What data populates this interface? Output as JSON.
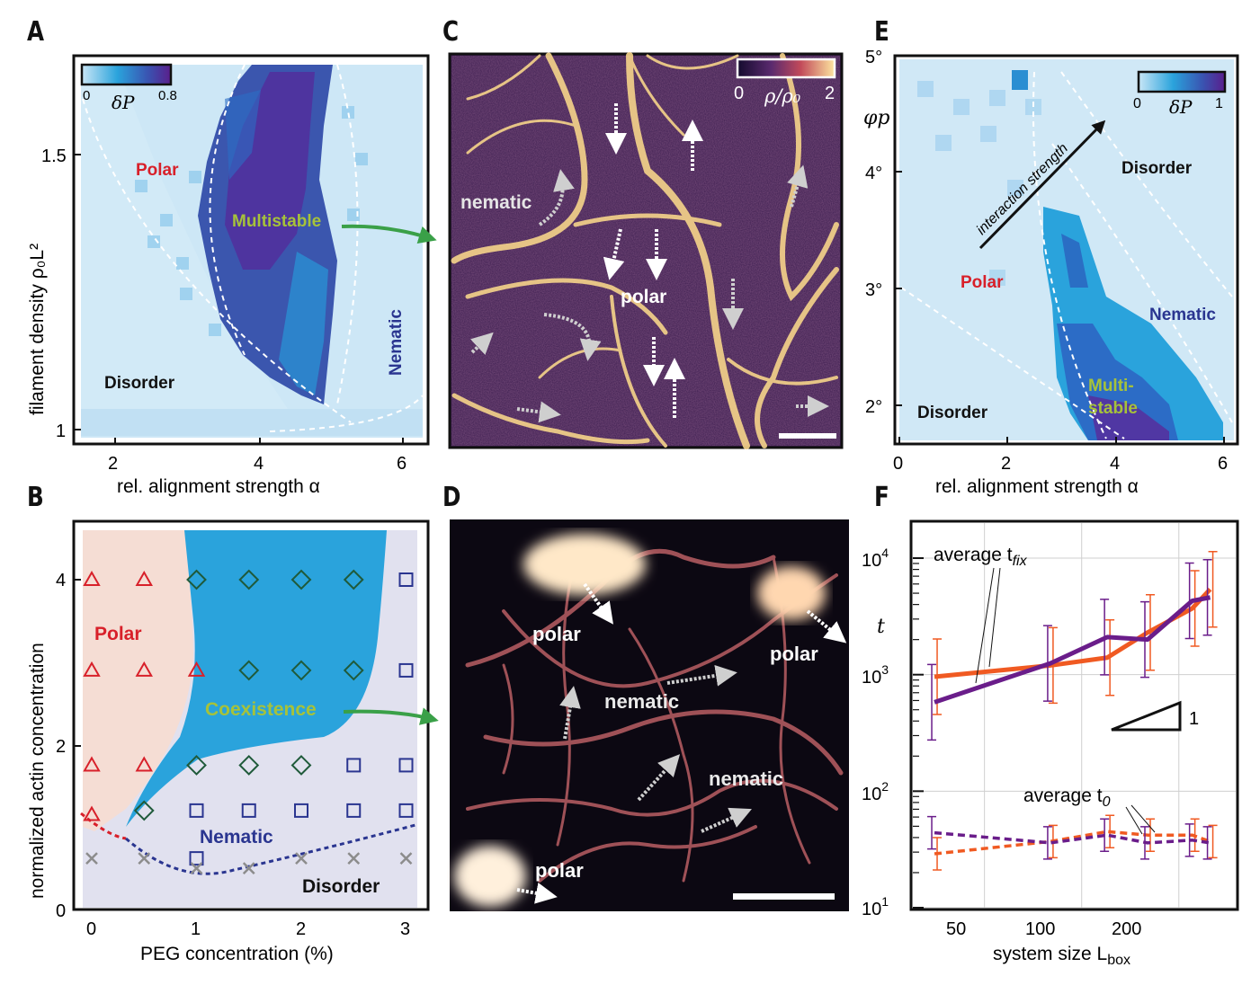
{
  "panels": {
    "A": {
      "letter": "A",
      "colorbar": {
        "min": "0",
        "max": "0.8",
        "label": "δP"
      },
      "xlabel": "rel. alignment strength α",
      "ylabel": "filament density ρ₀L²",
      "xticks": [
        "2",
        "4",
        "6"
      ],
      "yticks": [
        "1",
        "1.5"
      ],
      "regions": {
        "polar": "Polar",
        "multistable": "Multistable",
        "disorder": "Disorder",
        "nematic": "Nematic"
      }
    },
    "B": {
      "letter": "B",
      "xlabel": "PEG concentration (%)",
      "ylabel": "normalized actin concentration",
      "xticks": [
        "0",
        "1",
        "2",
        "3"
      ],
      "yticks": [
        "0",
        "2",
        "4"
      ],
      "regions": {
        "polar": "Polar",
        "coexistence": "Coexistence",
        "nematic": "Nematic",
        "disorder": "Disorder"
      }
    },
    "C": {
      "letter": "C",
      "colorbar": {
        "min": "0",
        "max": "2",
        "label": "ρ/ρ₀"
      },
      "labels": {
        "nematic": "nematic",
        "polar": "polar"
      }
    },
    "D": {
      "letter": "D",
      "labels": {
        "polar1": "polar",
        "polar2": "polar",
        "polar3": "polar",
        "nematic1": "nematic",
        "nematic2": "nematic"
      }
    },
    "E": {
      "letter": "E",
      "colorbar": {
        "min": "0",
        "max": "1",
        "label": "δP"
      },
      "xlabel": "rel. alignment strength α",
      "ylabel": "φp",
      "xticks": [
        "0",
        "2",
        "4",
        "6"
      ],
      "yticks": [
        "2°",
        "3°",
        "4°",
        "5°"
      ],
      "arrow_label": "interaction strength",
      "regions": {
        "disorder_top": "Disorder",
        "polar": "Polar",
        "nematic": "Nematic",
        "multistable_1": "Multi-",
        "multistable_2": "stable",
        "disorder_bottom": "Disorder"
      }
    },
    "F": {
      "letter": "F",
      "xlabel": "system size L",
      "xlabel_sub": "box",
      "ylabel": "t",
      "xticks": [
        "50",
        "100",
        "200"
      ],
      "yticks": [
        {
          "base": "10",
          "exp": "1"
        },
        {
          "base": "10",
          "exp": "2"
        },
        {
          "base": "10",
          "exp": "3"
        },
        {
          "base": "10",
          "exp": "4"
        }
      ],
      "legend_fix": "average t",
      "legend_fix_sub": "fix",
      "legend_0": "average t",
      "legend_0_sub": "0",
      "slope_label": "1"
    }
  },
  "colors": {
    "polar_red": "#d8202a",
    "nematic_blue": "#2a3590",
    "multistable_green": "#a6c23a",
    "coexist_blue": "#2aa3dc",
    "orange": "#f05a22",
    "purple": "#6a1d8a",
    "arrow_green": "#3aa048"
  },
  "chart_data": [
    {
      "type": "table",
      "panel": "B",
      "x_label": "PEG concentration (%)",
      "y_label": "normalized actin concentration",
      "points": [
        {
          "x": 0,
          "y": 4,
          "phase": "Polar"
        },
        {
          "x": 0.5,
          "y": 4,
          "phase": "Polar"
        },
        {
          "x": 1,
          "y": 4,
          "phase": "Coexistence"
        },
        {
          "x": 1.5,
          "y": 4,
          "phase": "Coexistence"
        },
        {
          "x": 2,
          "y": 4,
          "phase": "Coexistence"
        },
        {
          "x": 2.5,
          "y": 4,
          "phase": "Coexistence"
        },
        {
          "x": 3,
          "y": 4,
          "phase": "Nematic"
        },
        {
          "x": 0,
          "y": 2.9,
          "phase": "Polar"
        },
        {
          "x": 0.5,
          "y": 2.9,
          "phase": "Polar"
        },
        {
          "x": 1,
          "y": 2.9,
          "phase": "Polar"
        },
        {
          "x": 1.5,
          "y": 2.9,
          "phase": "Coexistence"
        },
        {
          "x": 2,
          "y": 2.9,
          "phase": "Coexistence"
        },
        {
          "x": 2.5,
          "y": 2.9,
          "phase": "Coexistence"
        },
        {
          "x": 3,
          "y": 2.9,
          "phase": "Nematic"
        },
        {
          "x": 0,
          "y": 1.75,
          "phase": "Polar"
        },
        {
          "x": 0.5,
          "y": 1.75,
          "phase": "Polar"
        },
        {
          "x": 1,
          "y": 1.75,
          "phase": "Coexistence"
        },
        {
          "x": 1.5,
          "y": 1.75,
          "phase": "Coexistence"
        },
        {
          "x": 2,
          "y": 1.75,
          "phase": "Coexistence"
        },
        {
          "x": 2.5,
          "y": 1.75,
          "phase": "Nematic"
        },
        {
          "x": 3,
          "y": 1.75,
          "phase": "Nematic"
        },
        {
          "x": 0,
          "y": 1.15,
          "phase": "Polar"
        },
        {
          "x": 0.5,
          "y": 1.2,
          "phase": "Coexistence"
        },
        {
          "x": 1,
          "y": 1.2,
          "phase": "Nematic"
        },
        {
          "x": 1.5,
          "y": 1.2,
          "phase": "Nematic"
        },
        {
          "x": 2,
          "y": 1.2,
          "phase": "Nematic"
        },
        {
          "x": 2.5,
          "y": 1.2,
          "phase": "Nematic"
        },
        {
          "x": 3,
          "y": 1.2,
          "phase": "Nematic"
        },
        {
          "x": 1,
          "y": 0.62,
          "phase": "Nematic"
        },
        {
          "x": 0,
          "y": 0.62,
          "phase": "Disorder"
        },
        {
          "x": 0.5,
          "y": 0.62,
          "phase": "Disorder"
        },
        {
          "x": 1,
          "y": 0.5,
          "phase": "Disorder"
        },
        {
          "x": 1.5,
          "y": 0.5,
          "phase": "Disorder"
        },
        {
          "x": 2,
          "y": 0.62,
          "phase": "Disorder"
        },
        {
          "x": 2.5,
          "y": 0.62,
          "phase": "Disorder"
        },
        {
          "x": 3,
          "y": 0.62,
          "phase": "Disorder"
        }
      ],
      "xlim": [
        -0.1,
        3.2
      ],
      "ylim": [
        0,
        4.6
      ]
    },
    {
      "type": "line",
      "panel": "F",
      "x_scale": "log",
      "y_scale": "log",
      "xlim": [
        30,
        300
      ],
      "ylim": [
        10,
        20000
      ],
      "series": [
        {
          "name": "average t_fix",
          "color": "#f05a22",
          "x": [
            35,
            80,
            120,
            160,
            220,
            250
          ],
          "y": [
            960,
            1200,
            1400,
            2300,
            3700,
            5400
          ]
        },
        {
          "name": "average t_fix",
          "color": "#6a1d8a",
          "x": [
            35,
            80,
            120,
            160,
            220,
            250
          ],
          "y": [
            580,
            1250,
            2100,
            2000,
            4300,
            4600
          ]
        },
        {
          "name": "average t_0",
          "color": "#f05a22",
          "x": [
            35,
            80,
            120,
            160,
            220,
            250
          ],
          "y": [
            29,
            37,
            45,
            42,
            42,
            37
          ]
        },
        {
          "name": "average t_0",
          "color": "#6a1d8a",
          "x": [
            35,
            80,
            120,
            160,
            220,
            250
          ],
          "y": [
            44,
            36,
            42,
            36,
            38,
            36
          ]
        }
      ]
    }
  ]
}
